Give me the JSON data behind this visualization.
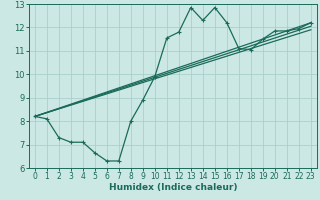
{
  "xlabel": "Humidex (Indice chaleur)",
  "xlim": [
    -0.5,
    23.5
  ],
  "ylim": [
    6,
    13
  ],
  "yticks": [
    6,
    7,
    8,
    9,
    10,
    11,
    12,
    13
  ],
  "xticks": [
    0,
    1,
    2,
    3,
    4,
    5,
    6,
    7,
    8,
    9,
    10,
    11,
    12,
    13,
    14,
    15,
    16,
    17,
    18,
    19,
    20,
    21,
    22,
    23
  ],
  "bg_color": "#cce8e4",
  "grid_color": "#aacfca",
  "line_color": "#1a6b5a",
  "line1_x": [
    0,
    1,
    2,
    3,
    4,
    5,
    6,
    7,
    8,
    9,
    10,
    11,
    12,
    13,
    14,
    15,
    16,
    17,
    18,
    19,
    20,
    21,
    22,
    23
  ],
  "line1_y": [
    8.2,
    8.1,
    7.3,
    7.1,
    7.1,
    6.65,
    6.3,
    6.3,
    8.0,
    8.9,
    9.9,
    11.55,
    11.8,
    12.85,
    12.3,
    12.85,
    12.2,
    11.1,
    11.05,
    11.5,
    11.85,
    11.85,
    11.95,
    12.2
  ],
  "line2_x": [
    0,
    23
  ],
  "line2_y": [
    8.2,
    12.2
  ],
  "line3_x": [
    0,
    23
  ],
  "line3_y": [
    8.2,
    12.2
  ],
  "line4_x": [
    0,
    23
  ],
  "line4_y": [
    8.2,
    12.2
  ]
}
